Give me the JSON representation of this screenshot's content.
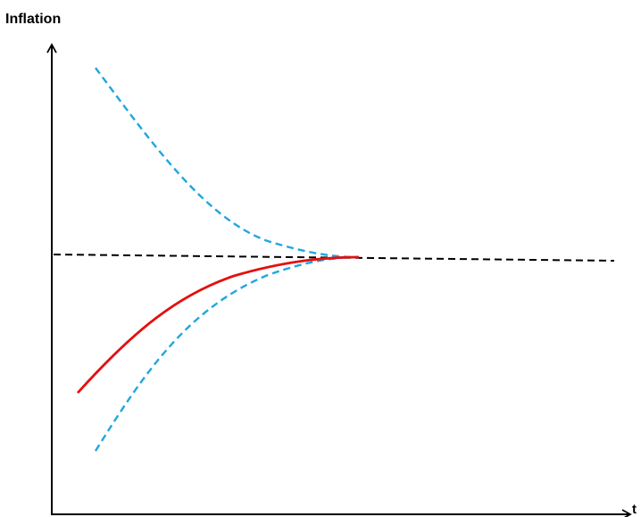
{
  "diagram": {
    "y_axis_label": "Inflation",
    "x_axis_label": "t",
    "colors": {
      "axes": "#000000",
      "target_line": "#000000",
      "actual_path": "#e3100f",
      "band": "#1fa6df"
    },
    "elements": [
      "y-axis-arrow",
      "x-axis-arrow",
      "target-dashed-line",
      "upper-band-dashed-curve",
      "lower-band-dashed-curve",
      "inflation-path-curve"
    ]
  }
}
